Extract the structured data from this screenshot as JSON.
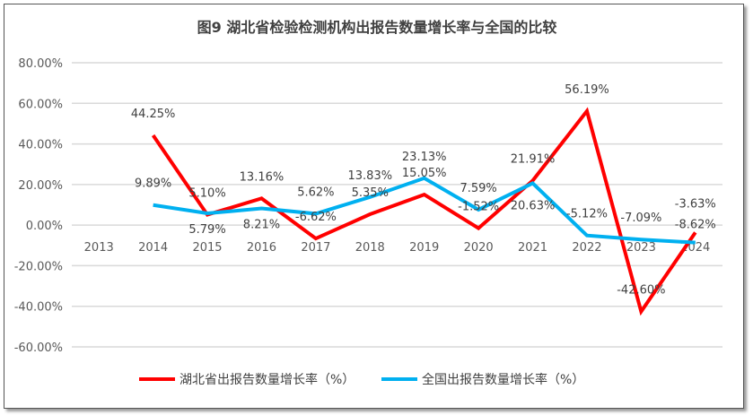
{
  "chart_data": {
    "type": "line",
    "title": "图9  湖北省检验检测机构出报告数量增长率与全国的比较",
    "categories": [
      "2013",
      "2014",
      "2015",
      "2016",
      "2017",
      "2018",
      "2019",
      "2020",
      "2021",
      "2022",
      "2023",
      "2024"
    ],
    "ylim": [
      -60,
      80
    ],
    "yticks": [
      "80.00%",
      "60.00%",
      "40.00%",
      "20.00%",
      "0.00%",
      "-20.00%",
      "-40.00%",
      "-60.00%"
    ],
    "grid": true,
    "legend_position": "bottom",
    "series": [
      {
        "name": "湖北省出报告数量增长率（%）",
        "color": "#FF0000",
        "values": [
          null,
          44.25,
          5.1,
          13.16,
          -6.62,
          5.35,
          15.05,
          -1.52,
          21.91,
          56.19,
          -42.6,
          -3.63
        ],
        "labels": [
          "",
          "44.25%",
          "5.10%",
          "13.16%",
          "-6.62%",
          "5.35%",
          "15.05%",
          "-1.52%",
          "21.91%",
          "56.19%",
          "-42.60%",
          "-3.63%"
        ]
      },
      {
        "name": "全国出报告数量增长率（%）",
        "color": "#00B0F0",
        "values": [
          null,
          9.89,
          5.79,
          8.21,
          5.62,
          13.83,
          23.13,
          7.59,
          20.63,
          -5.12,
          -7.09,
          -8.62
        ],
        "labels": [
          "",
          "9.89%",
          "5.79%",
          "8.21%",
          "5.62%",
          "13.83%",
          "23.13%",
          "7.59%",
          "20.63%",
          "-5.12%",
          "-7.09%",
          "-8.62%"
        ]
      }
    ]
  }
}
